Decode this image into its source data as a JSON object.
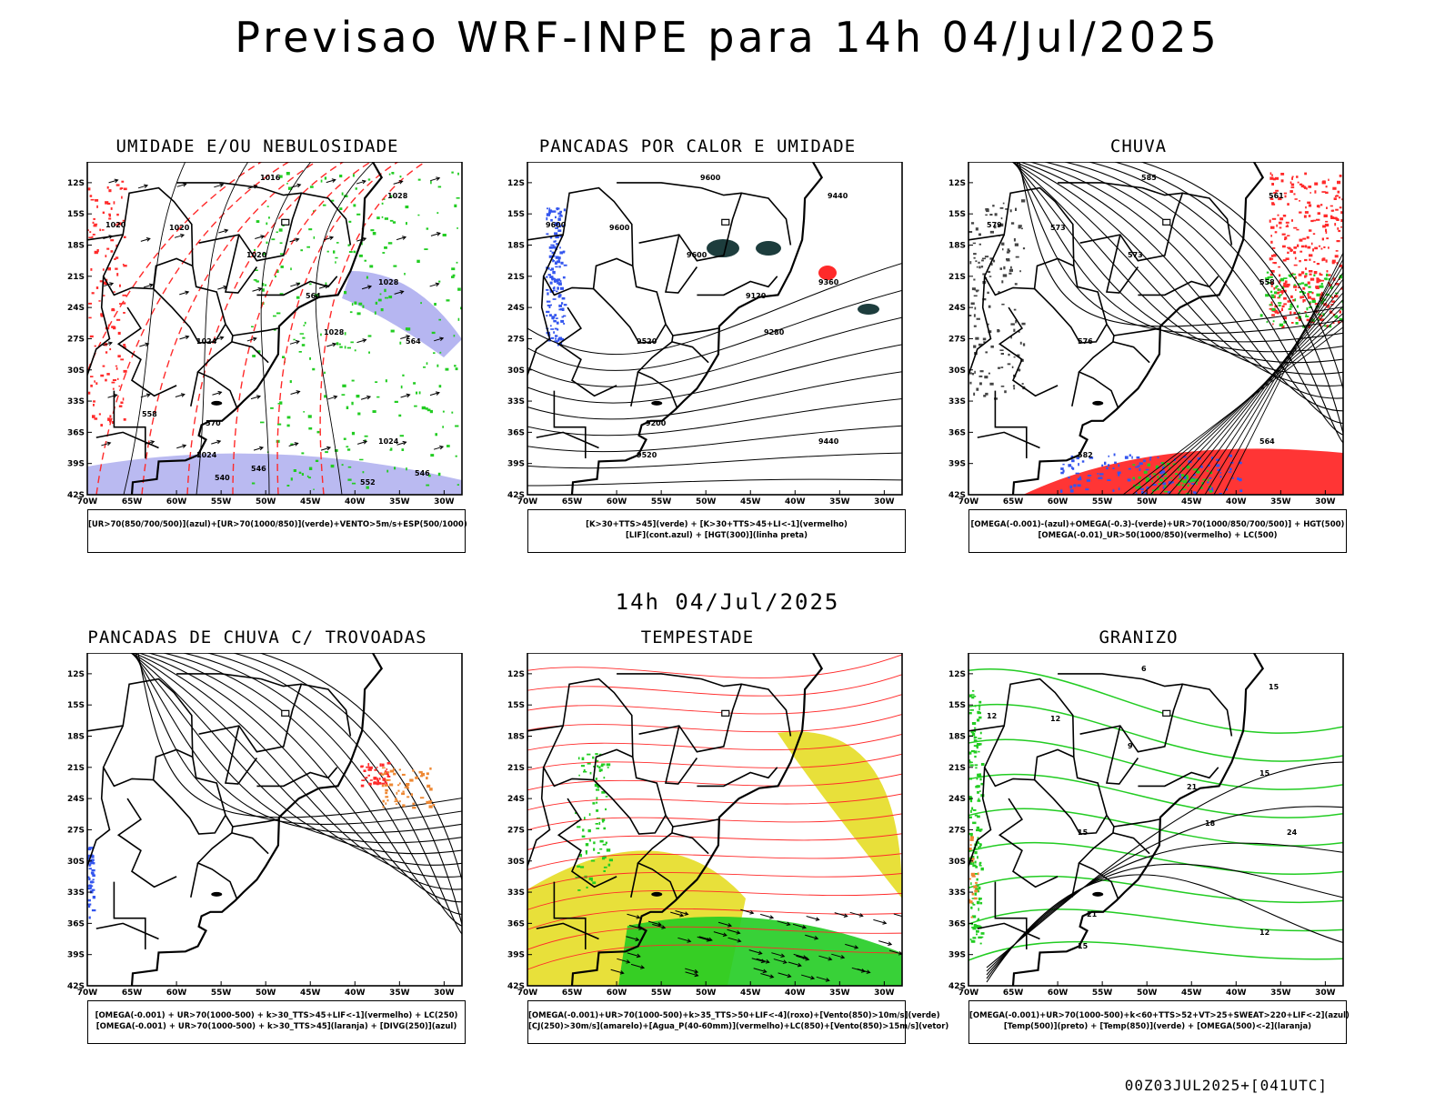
{
  "page": {
    "title": "Previsao WRF-INPE  para 14h 04/Jul/2025",
    "mid_title": "14h 04/Jul/2025",
    "footer": "00Z03JUL2025+[041UTC]"
  },
  "colors": {
    "axis": "#000000",
    "contour_black": "#000000",
    "contour_red": "#ff2a2a",
    "green": "#22cc22",
    "blue": "#3355ee",
    "lavender": "#a9a9ee",
    "yellow": "#e8e03a",
    "orange": "#ee8833",
    "dark_teal": "#1d3d3d"
  },
  "chart_data": [
    {
      "id": "umidade",
      "type": "map",
      "title": "UMIDADE E/OU NEBULOSIDADE",
      "legend": [
        "[UR>70(850/700/500)](azul)+[UR>70(1000/850)](verde)+VENTO>5m/s+ESP(500/1000)"
      ],
      "xlim": [
        -70,
        -28
      ],
      "ylim": [
        -42,
        -10
      ],
      "xticks": [
        "70W",
        "65W",
        "60W",
        "55W",
        "50W",
        "45W",
        "40W",
        "35W",
        "30W"
      ],
      "yticks": [
        "12S",
        "15S",
        "18S",
        "21S",
        "24S",
        "27S",
        "30S",
        "33S",
        "36S",
        "39S",
        "42S"
      ],
      "contour_labels": [
        "1016",
        "1020",
        "1020",
        "1020",
        "1024",
        "1024",
        "1024",
        "1028",
        "1028",
        "1028",
        "570",
        "564",
        "564",
        "558",
        "552",
        "546",
        "546",
        "540"
      ]
    },
    {
      "id": "pancadas_calor",
      "type": "map",
      "title": "PANCADAS POR CALOR E UMIDADE",
      "legend": [
        "[K>30+TTS>45](verde) + [K>30+TTS>45+LI<-1](vermelho)",
        "[LIF](cont.azul) + [HGT(300)](linha preta)"
      ],
      "xlim": [
        -70,
        -28
      ],
      "ylim": [
        -42,
        -10
      ],
      "xticks": [
        "70W",
        "65W",
        "60W",
        "55W",
        "50W",
        "45W",
        "40W",
        "35W",
        "30W"
      ],
      "yticks": [
        "12S",
        "15S",
        "18S",
        "21S",
        "24S",
        "27S",
        "30S",
        "33S",
        "36S",
        "39S",
        "42S"
      ],
      "contour_labels": [
        "9600",
        "9600",
        "9600",
        "9600",
        "9520",
        "9520",
        "9440",
        "9440",
        "9360",
        "9280",
        "9200",
        "9120"
      ]
    },
    {
      "id": "chuva",
      "type": "map",
      "title": "CHUVA",
      "legend": [
        "[OMEGA(-0.001)-(azul)+OMEGA(-0.3)-(verde)+UR>70(1000/850/700/500)] + HGT(500)",
        "[OMEGA(-0.01)_UR>50(1000/850)(vermelho) + LC(500)"
      ],
      "xlim": [
        -70,
        -28
      ],
      "ylim": [
        -42,
        -10
      ],
      "xticks": [
        "70W",
        "65W",
        "60W",
        "55W",
        "50W",
        "45W",
        "40W",
        "35W",
        "30W"
      ],
      "yticks": [
        "12S",
        "15S",
        "18S",
        "21S",
        "24S",
        "27S",
        "30S",
        "33S",
        "36S",
        "39S",
        "42S"
      ],
      "contour_labels": [
        "585",
        "579",
        "573",
        "573",
        "576",
        "582",
        "564",
        "561",
        "558"
      ]
    },
    {
      "id": "trovoadas",
      "type": "map",
      "title": "PANCADAS DE CHUVA C/ TROVOADAS",
      "legend": [
        "[OMEGA(-0.001) + UR>70(1000-500) + k>30_TTS>45+LIF<-1](vermelho) + LC(250)",
        "[OMEGA(-0.001) + UR>70(1000-500) + k>30_TTS>45](laranja) + [DIVG(250)](azul)"
      ],
      "xlim": [
        -70,
        -28
      ],
      "ylim": [
        -42,
        -10
      ],
      "xticks": [
        "70W",
        "65W",
        "60W",
        "55W",
        "50W",
        "45W",
        "40W",
        "35W",
        "30W"
      ],
      "yticks": [
        "12S",
        "15S",
        "18S",
        "21S",
        "24S",
        "27S",
        "30S",
        "33S",
        "36S",
        "39S",
        "42S"
      ],
      "contour_labels": []
    },
    {
      "id": "tempestade",
      "type": "map",
      "title": "TEMPESTADE",
      "legend": [
        "[OMEGA(-0.001)+UR>70(1000-500)+k>35_TTS>50+LIF<-4](roxo)+[Vento(850)>10m/s](verde)",
        "[CJ(250)>30m/s](amarelo)+[Agua_P(40-60mm)](vermelho)+LC(850)+[Vento(850)>15m/s](vetor)"
      ],
      "xlim": [
        -70,
        -28
      ],
      "ylim": [
        -42,
        -10
      ],
      "xticks": [
        "70W",
        "65W",
        "60W",
        "55W",
        "50W",
        "45W",
        "40W",
        "35W",
        "30W"
      ],
      "yticks": [
        "12S",
        "15S",
        "18S",
        "21S",
        "24S",
        "27S",
        "30S",
        "33S",
        "36S",
        "39S",
        "42S"
      ],
      "contour_labels": []
    },
    {
      "id": "granizo",
      "type": "map",
      "title": "GRANIZO",
      "legend": [
        "[OMEGA(-0.001)+UR>70(1000-500)+k<60+TTS>52+VT>25+SWEAT>220+LIF<-2](azul)",
        "[Temp(500)](preto) + [Temp(850)](verde) + [OMEGA(500)<-2](laranja)"
      ],
      "xlim": [
        -70,
        -28
      ],
      "ylim": [
        -42,
        -10
      ],
      "xticks": [
        "70W",
        "65W",
        "60W",
        "55W",
        "50W",
        "45W",
        "40W",
        "35W",
        "30W"
      ],
      "yticks": [
        "12S",
        "15S",
        "18S",
        "21S",
        "24S",
        "27S",
        "30S",
        "33S",
        "36S",
        "39S",
        "42S"
      ],
      "contour_labels": [
        "6",
        "12",
        "12",
        "9",
        "15",
        "15",
        "12",
        "15",
        "15",
        "18",
        "21",
        "21",
        "24"
      ]
    }
  ]
}
